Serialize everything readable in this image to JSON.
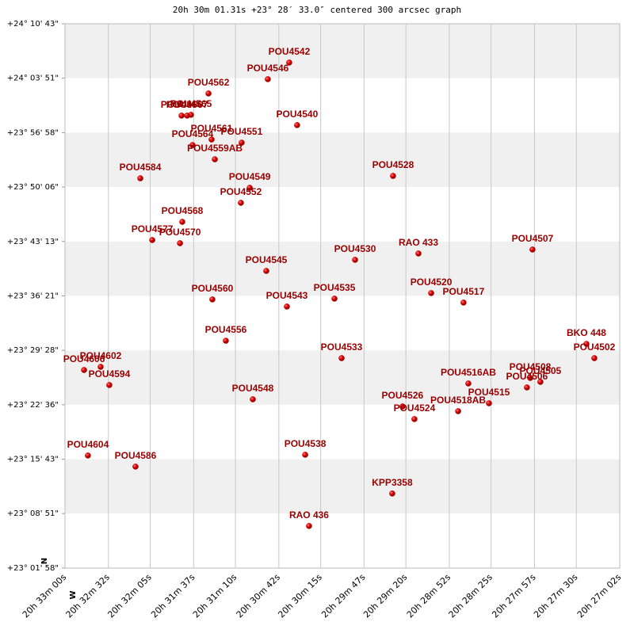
{
  "chart_data": {
    "type": "scatter",
    "title": "20h 30m 01.31s +23° 28′ 33.0″ centered 300 arcsec graph",
    "north_label": "N",
    "west_label": "W",
    "color": "#cc0000",
    "label_color": "#990000",
    "grid": true,
    "xlim": [
      1980,
      1622
    ],
    "xticks": [
      {
        "value": 1980,
        "label": "20h 33m 00s"
      },
      {
        "value": 1952,
        "label": "20h 32m 32s"
      },
      {
        "value": 1925,
        "label": "20h 32m 05s"
      },
      {
        "value": 1897,
        "label": "20h 31m 37s"
      },
      {
        "value": 1870,
        "label": "20h 31m 10s"
      },
      {
        "value": 1842,
        "label": "20h 30m 42s"
      },
      {
        "value": 1815,
        "label": "20h 30m 15s"
      },
      {
        "value": 1787,
        "label": "20h 29m 47s"
      },
      {
        "value": 1760,
        "label": "20h 29m 20s"
      },
      {
        "value": 1732,
        "label": "20h 28m 52s"
      },
      {
        "value": 1705,
        "label": "20h 28m 25s"
      },
      {
        "value": 1677,
        "label": "20h 27m 57s"
      },
      {
        "value": 1650,
        "label": "20h 27m 30s"
      },
      {
        "value": 1622,
        "label": "20h 27m 02s"
      }
    ],
    "ylim": [
      82918,
      87043
    ],
    "yticks": [
      {
        "value": 87043,
        "label": "+24° 10' 43\""
      },
      {
        "value": 86631,
        "label": "+24° 03' 51\""
      },
      {
        "value": 86218,
        "label": "+23° 56' 58\""
      },
      {
        "value": 85806,
        "label": "+23° 50' 06\""
      },
      {
        "value": 85393,
        "label": "+23° 43' 13\""
      },
      {
        "value": 84981,
        "label": "+23° 36' 21\""
      },
      {
        "value": 84568,
        "label": "+23° 29' 28\""
      },
      {
        "value": 84156,
        "label": "+23° 22' 36\""
      },
      {
        "value": 83743,
        "label": "+23° 15' 43\""
      },
      {
        "value": 83331,
        "label": "+23° 08' 51\""
      },
      {
        "value": 82918,
        "label": "+23° 01' 58\""
      }
    ],
    "labels": [
      "POU4542",
      "POU4546",
      "POU4562",
      "POU4565",
      "POU4567",
      "POU4566",
      "POU4540",
      "POU4561",
      "POU4564",
      "POU4551",
      "POU4559AB",
      "POU4584",
      "POU4528",
      "POU4549",
      "POU4552",
      "POU4568",
      "POU4577",
      "POU4570",
      "RAO 433",
      "POU4507",
      "POU4530",
      "POU4545",
      "POU4520",
      "POU4560",
      "POU4535",
      "POU4517",
      "POU4543",
      "POU4556",
      "BKO 448",
      "POU4502",
      "POU4533",
      "POU4602",
      "POU4606",
      "POU4594",
      "POU4505",
      "POU4508",
      "POU4506",
      "POU4516AB",
      "POU4515",
      "POU4518AB",
      "POU4526",
      "POU4524",
      "POU4548",
      "POU4604",
      "POU4586",
      "POU4538",
      "KPP3358",
      "RAO 436"
    ],
    "x": [
      1835.3,
      1849.1,
      1887.4,
      1898.7,
      1901.2,
      1904.8,
      1830.2,
      1885.4,
      1897.7,
      1866.0,
      1883.3,
      1931.4,
      1768.3,
      1860.8,
      1866.5,
      1904.3,
      1923.7,
      1905.8,
      1751.9,
      1678.3,
      1792.8,
      1850.1,
      1743.7,
      1884.9,
      1806.1,
      1722.8,
      1836.8,
      1876.2,
      1643.5,
      1638.4,
      1801.5,
      1957.0,
      1967.7,
      1951.4,
      1673.2,
      1679.8,
      1681.9,
      1719.7,
      1706.4,
      1726.3,
      1762.2,
      1754.5,
      1858.8,
      1965.2,
      1934.5,
      1825.0,
      1768.8,
      1822.5
    ],
    "y": [
      86749,
      86623,
      86515,
      86353,
      86347,
      86347,
      86275,
      86166,
      86124,
      86142,
      86016,
      85872,
      85890,
      85800,
      85686,
      85542,
      85404,
      85380,
      85302,
      85332,
      85254,
      85170,
      85002,
      84954,
      84960,
      84930,
      84900,
      84641,
      84617,
      84509,
      84509,
      84443,
      84419,
      84305,
      84329,
      84359,
      84287,
      84317,
      84167,
      84107,
      84143,
      84047,
      84197,
      83771,
      83687,
      83777,
      83483,
      83237
    ]
  }
}
